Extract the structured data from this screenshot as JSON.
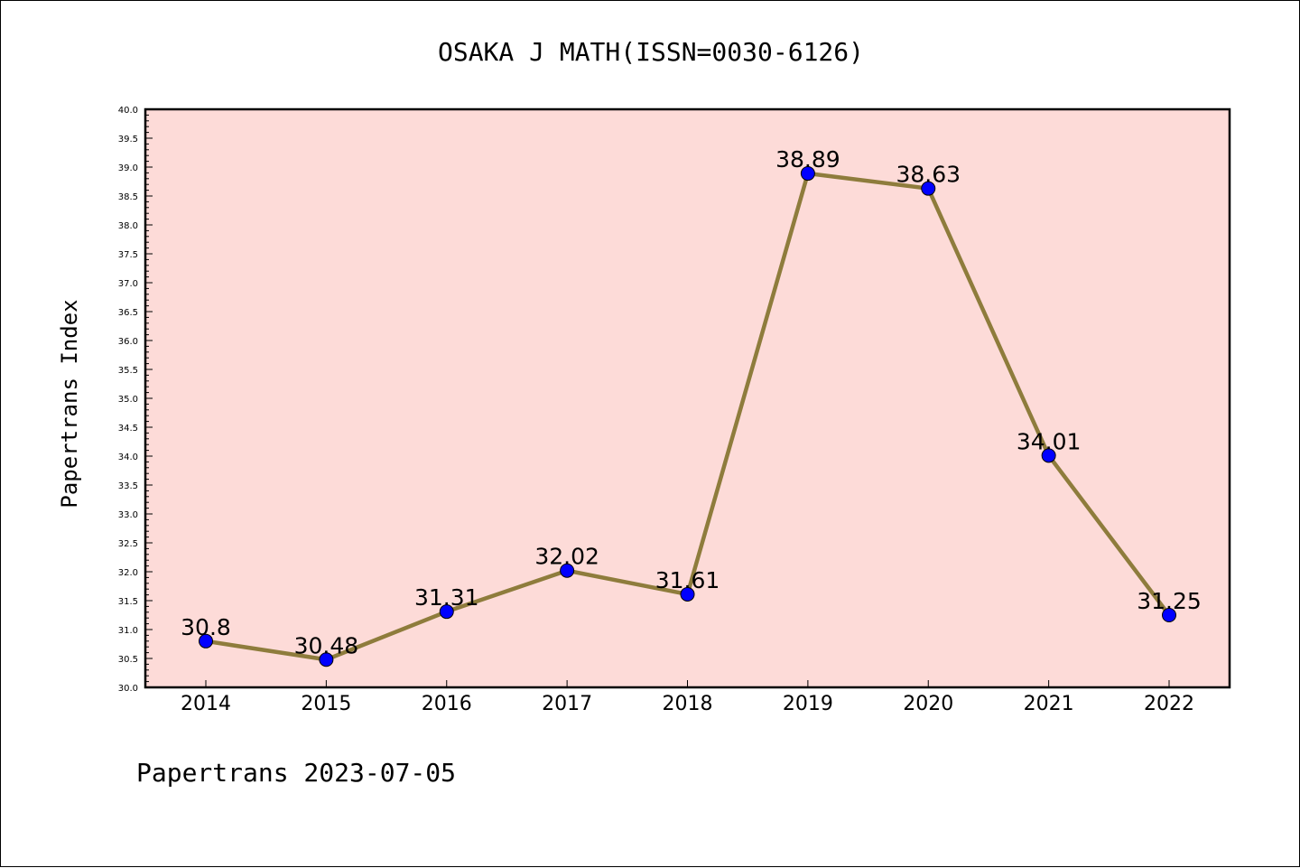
{
  "chart_data": {
    "type": "line",
    "title": "OSAKA J MATH(ISSN=0030-6126)",
    "ylabel": "Papertrans Index",
    "xlabel": "",
    "footer": "Papertrans 2023-07-05",
    "categories": [
      "2014",
      "2015",
      "2016",
      "2017",
      "2018",
      "2019",
      "2020",
      "2021",
      "2022"
    ],
    "values": [
      30.8,
      30.48,
      31.31,
      32.02,
      31.61,
      38.89,
      38.63,
      34.01,
      31.25
    ],
    "data_labels": [
      "30.8",
      "30.48",
      "31.31",
      "32.02",
      "31.61",
      "38.89",
      "38.63",
      "34.01",
      "31.25"
    ],
    "ylim": [
      30.0,
      40.0
    ],
    "yticks": [
      "30.0",
      "30.5",
      "31.0",
      "31.5",
      "32.0",
      "32.5",
      "33.0",
      "33.5",
      "34.0",
      "34.5",
      "35.0",
      "35.5",
      "36.0",
      "36.5",
      "37.0",
      "37.5",
      "38.0",
      "38.5",
      "39.0",
      "39.5",
      "40.0"
    ],
    "grid": false,
    "colors": {
      "plot_background": "#fddbd8",
      "line": "#8e7c3c",
      "marker": "#0000ff"
    }
  }
}
